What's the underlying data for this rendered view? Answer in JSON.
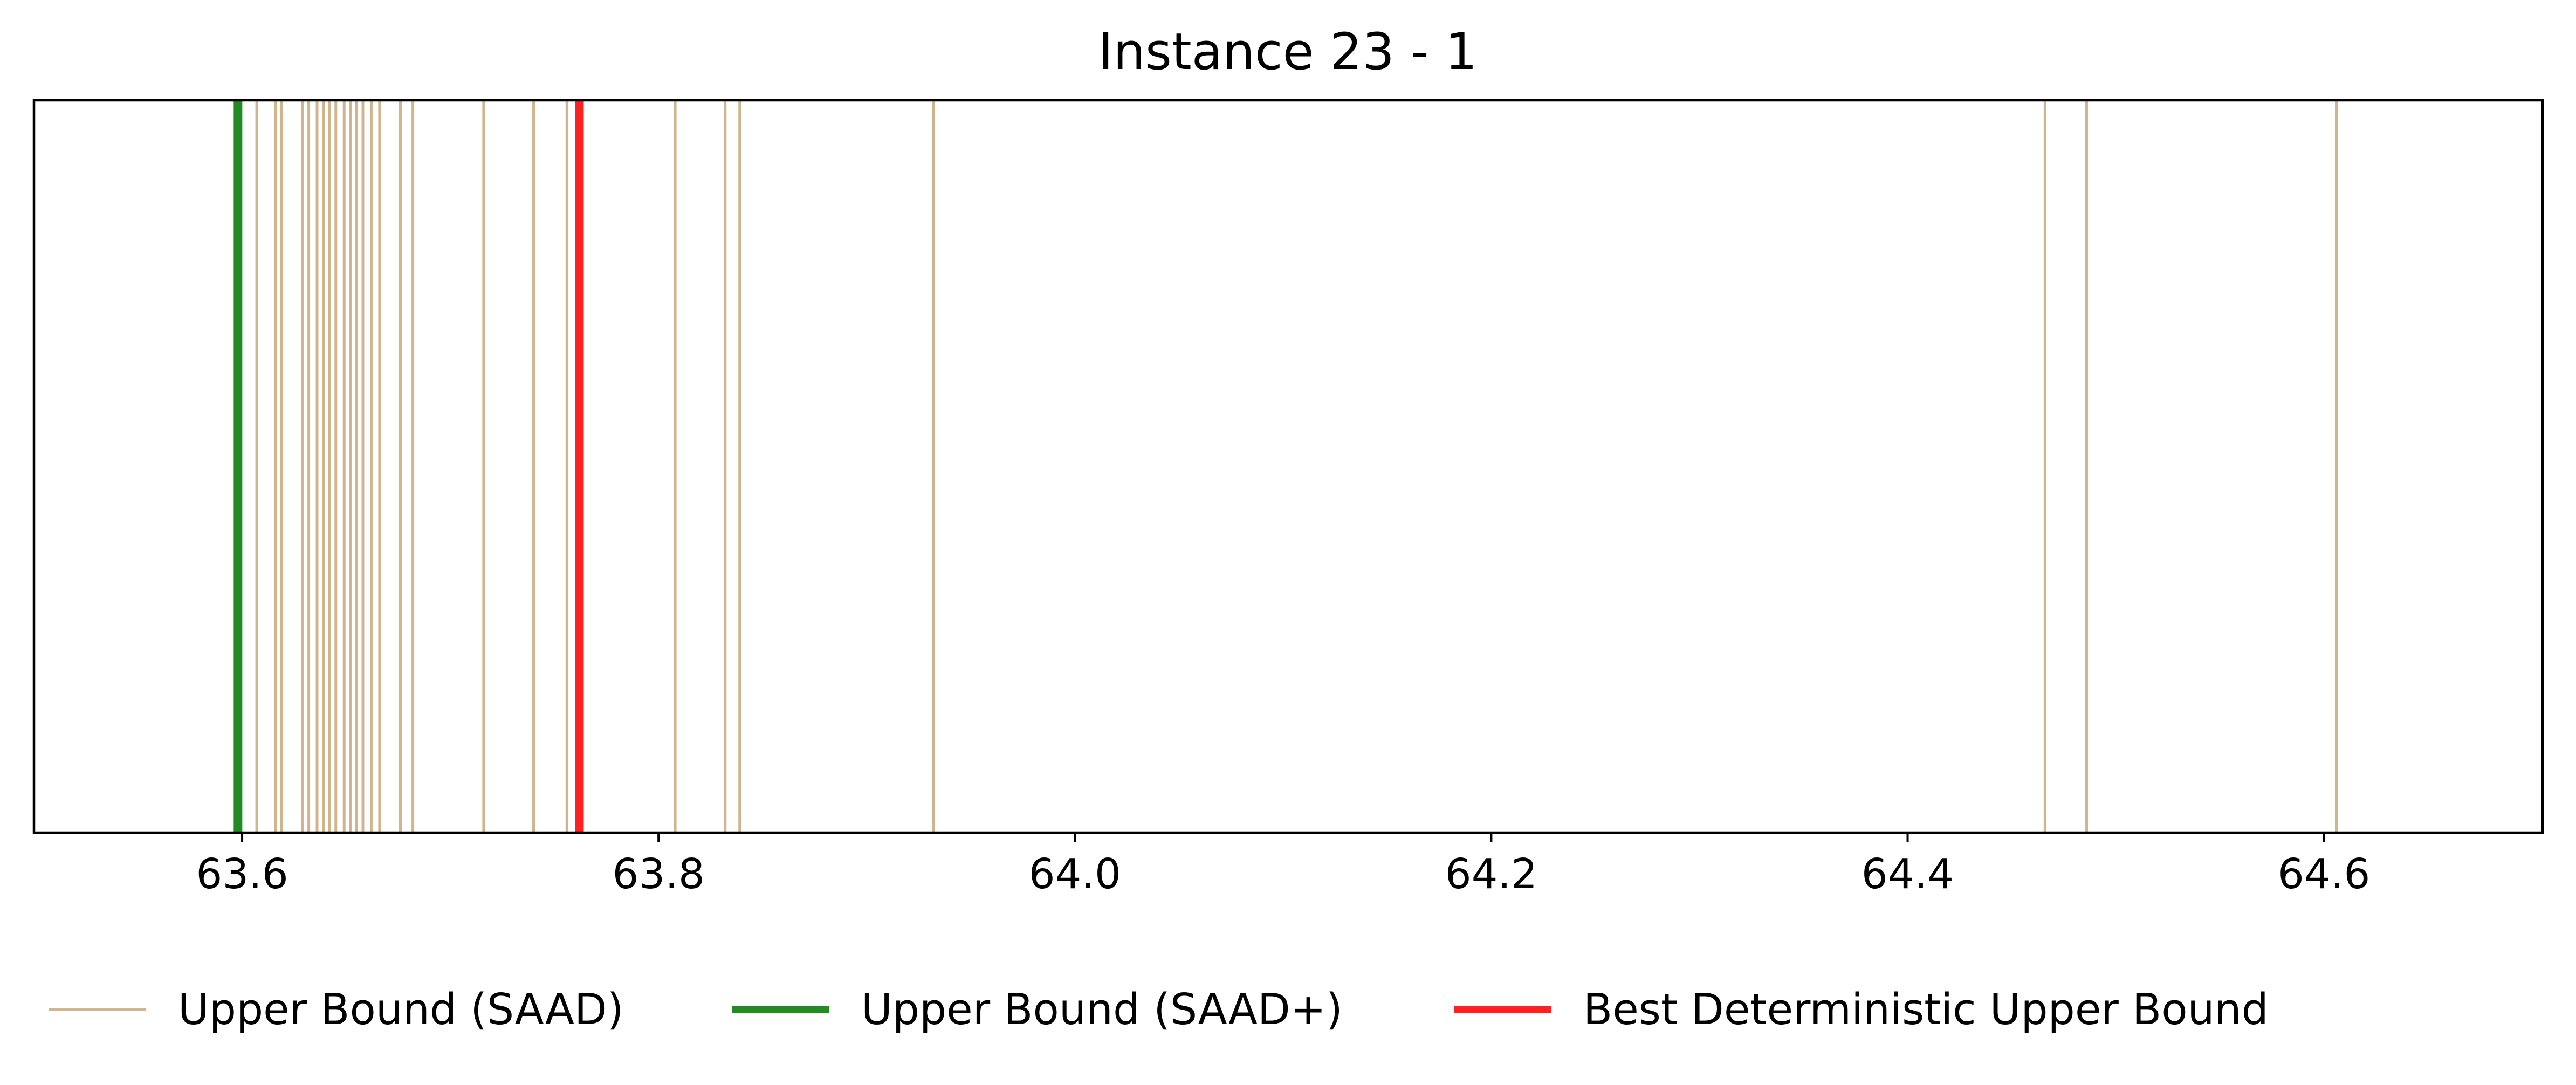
{
  "chart_data": {
    "type": "line",
    "title": "Instance 23 - 1",
    "xlabel": "",
    "ylabel": "",
    "xlim": [
      63.5,
      64.705
    ],
    "grid": false,
    "legend_position": "bottom",
    "xticks": [
      63.6,
      63.8,
      64.0,
      64.2,
      64.4,
      64.6
    ],
    "xtick_labels": [
      "63.6",
      "63.8",
      "64.0",
      "64.2",
      "64.4",
      "64.6"
    ],
    "series": [
      {
        "name": "Upper Bound (SAAD)",
        "color": "#d2b48c",
        "style": "thin",
        "values": [
          63.607,
          63.616,
          63.619,
          63.629,
          63.632,
          63.636,
          63.639,
          63.642,
          63.645,
          63.649,
          63.652,
          63.655,
          63.658,
          63.662,
          63.666,
          63.676,
          63.682,
          63.716,
          63.74,
          63.756,
          63.808,
          63.832,
          63.839,
          63.932,
          64.466,
          64.486,
          64.606
        ]
      },
      {
        "name": "Upper Bound (SAAD+)",
        "color": "#228b22",
        "style": "thick",
        "values": [
          63.598
        ]
      },
      {
        "name": "Best Deterministic Upper Bound",
        "color": "#ff2020",
        "style": "thick",
        "values": [
          63.762
        ]
      }
    ]
  }
}
